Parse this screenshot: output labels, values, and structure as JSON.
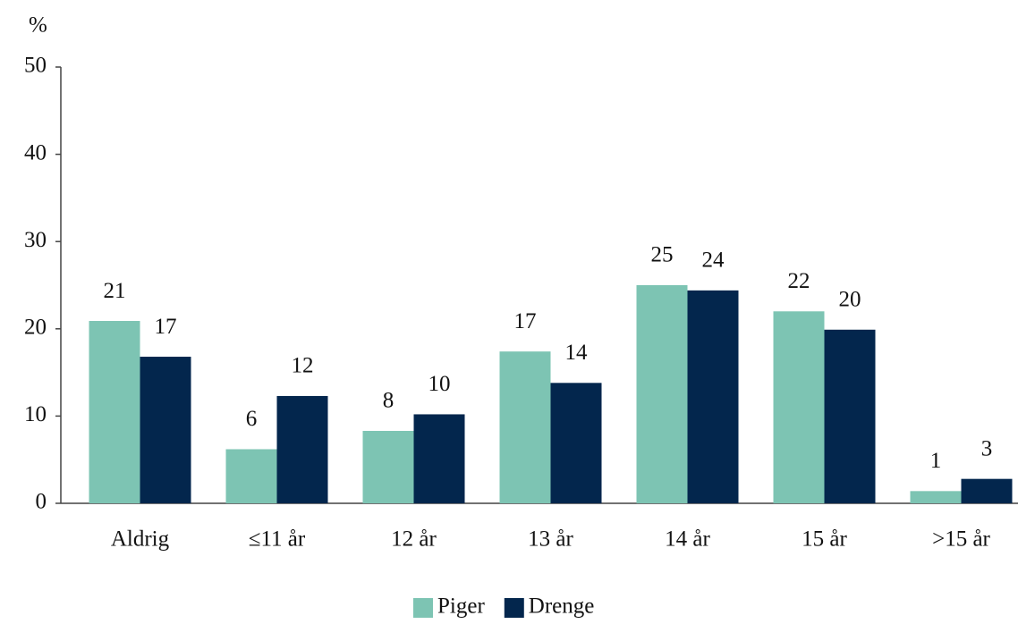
{
  "chart_data": {
    "type": "bar",
    "y_label": "%",
    "categories": [
      "Aldrig",
      "≤11 år",
      "12 år",
      "13 år",
      "14 år",
      "15 år",
      ">15 år"
    ],
    "series": [
      {
        "name": "Piger",
        "color": "#7dc4b3",
        "values": [
          20.9,
          6.2,
          8.3,
          17.4,
          25.0,
          22.0,
          1.4
        ],
        "value_labels": [
          "21",
          "6",
          "8",
          "17",
          "25",
          "22",
          "1"
        ]
      },
      {
        "name": "Drenge",
        "color": "#03264d",
        "values": [
          16.8,
          12.3,
          10.2,
          13.8,
          24.4,
          19.9,
          2.8
        ],
        "value_labels": [
          "17",
          "12",
          "10",
          "14",
          "24",
          "20",
          "3"
        ]
      }
    ],
    "ylim": [
      0,
      50
    ],
    "yticks": [
      0,
      10,
      20,
      30,
      40,
      50
    ],
    "grid": false,
    "legend": "bottom"
  }
}
